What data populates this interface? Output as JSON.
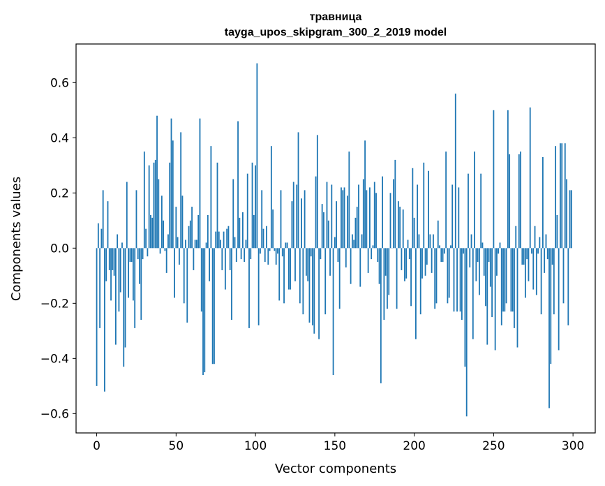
{
  "chart_data": {
    "type": "bar",
    "title_line1": "травница",
    "title_line2": "tayga_upos_skipgram_300_2_2019 model",
    "xlabel": "Vector components",
    "ylabel": "Components values",
    "xlim": [
      -13,
      314
    ],
    "ylim": [
      -0.67,
      0.74
    ],
    "xticks": [
      0,
      50,
      100,
      150,
      200,
      250,
      300
    ],
    "xtick_labels": [
      "0",
      "50",
      "100",
      "150",
      "200",
      "250",
      "300"
    ],
    "yticks": [
      -0.6,
      -0.4,
      -0.2,
      0.0,
      0.2,
      0.4,
      0.6
    ],
    "ytick_labels": [
      "−0.6",
      "−0.4",
      "−0.2",
      "0.0",
      "0.2",
      "0.4",
      "0.6"
    ],
    "bar_color": "#1f77b4",
    "values": [
      -0.5,
      0.09,
      -0.29,
      0.07,
      0.21,
      -0.52,
      -0.12,
      0.17,
      -0.08,
      -0.19,
      -0.08,
      -0.1,
      -0.35,
      0.05,
      -0.23,
      -0.16,
      0.02,
      -0.43,
      -0.36,
      0.24,
      -0.18,
      -0.05,
      -0.05,
      -0.19,
      -0.29,
      0.21,
      -0.04,
      -0.13,
      -0.26,
      -0.04,
      0.35,
      0.07,
      -0.03,
      0.3,
      0.12,
      0.11,
      0.31,
      0.32,
      0.48,
      0.25,
      -0.02,
      0.19,
      0.1,
      -0.01,
      -0.09,
      0.05,
      0.31,
      0.47,
      0.39,
      -0.18,
      0.15,
      0.04,
      -0.06,
      0.42,
      0.19,
      -0.2,
      0.03,
      -0.27,
      0.08,
      0.1,
      0.15,
      -0.08,
      0.03,
      0.03,
      0.12,
      0.47,
      -0.23,
      -0.46,
      -0.45,
      0.02,
      0.12,
      -0.12,
      0.37,
      -0.42,
      -0.42,
      0.06,
      0.31,
      0.06,
      0.03,
      -0.08,
      0.06,
      -0.15,
      0.07,
      0.08,
      -0.08,
      -0.26,
      0.25,
      0.04,
      -0.05,
      0.46,
      0.11,
      -0.04,
      0.13,
      -0.05,
      0.03,
      0.27,
      -0.29,
      -0.04,
      0.31,
      0.12,
      0.3,
      0.67,
      -0.28,
      -0.02,
      0.21,
      0.07,
      -0.05,
      0.08,
      -0.06,
      -0.01,
      0.37,
      0.14,
      -0.01,
      -0.06,
      -0.02,
      -0.19,
      0.21,
      -0.03,
      -0.2,
      0.02,
      0.02,
      -0.15,
      -0.15,
      0.17,
      0.24,
      -0.12,
      0.23,
      0.42,
      -0.2,
      0.18,
      -0.24,
      0.21,
      -0.1,
      -0.12,
      -0.27,
      -0.03,
      -0.28,
      -0.31,
      0.26,
      0.41,
      -0.33,
      -0.04,
      0.16,
      0.13,
      -0.24,
      0.24,
      0.1,
      -0.1,
      0.23,
      -0.46,
      0.04,
      0.17,
      -0.05,
      -0.22,
      0.22,
      0.21,
      0.22,
      -0.07,
      0.19,
      0.35,
      -0.13,
      0.05,
      0.03,
      0.11,
      0.15,
      0.23,
      -0.14,
      0.05,
      0.25,
      0.39,
      0.21,
      -0.09,
      0.22,
      -0.04,
      0.01,
      0.24,
      0.2,
      -0.05,
      -0.13,
      -0.49,
      0.26,
      -0.26,
      -0.1,
      -0.22,
      -0.17,
      0.2,
      0.0,
      0.25,
      0.32,
      -0.22,
      0.17,
      0.15,
      -0.08,
      0.14,
      -0.12,
      -0.11,
      0.03,
      -0.04,
      -0.21,
      0.29,
      0.11,
      -0.33,
      0.23,
      0.05,
      -0.24,
      -0.11,
      0.31,
      -0.1,
      -0.06,
      0.28,
      0.05,
      -0.09,
      0.05,
      -0.22,
      -0.2,
      0.1,
      0.01,
      -0.05,
      -0.05,
      -0.02,
      0.35,
      -0.2,
      -0.18,
      0.01,
      0.23,
      -0.23,
      0.56,
      -0.23,
      0.22,
      -0.23,
      -0.26,
      -0.02,
      -0.43,
      -0.61,
      0.27,
      -0.07,
      0.05,
      -0.33,
      0.35,
      -0.12,
      -0.05,
      -0.17,
      0.27,
      0.02,
      -0.1,
      -0.21,
      -0.35,
      -0.05,
      -0.14,
      -0.25,
      0.5,
      -0.37,
      -0.1,
      -0.02,
      0.02,
      -0.28,
      -0.23,
      -0.23,
      -0.2,
      0.5,
      0.34,
      -0.23,
      -0.23,
      -0.29,
      0.08,
      -0.36,
      0.34,
      0.35,
      -0.06,
      -0.06,
      -0.18,
      -0.04,
      -0.12,
      0.51,
      -0.02,
      -0.15,
      0.08,
      -0.17,
      -0.02,
      0.04,
      -0.24,
      0.33,
      -0.09,
      0.05,
      -0.04,
      -0.58,
      -0.42,
      -0.06,
      -0.24,
      0.37,
      0.12,
      -0.37,
      0.38,
      0.38,
      -0.2,
      0.38,
      0.25,
      -0.28,
      0.21,
      0.21
    ]
  }
}
